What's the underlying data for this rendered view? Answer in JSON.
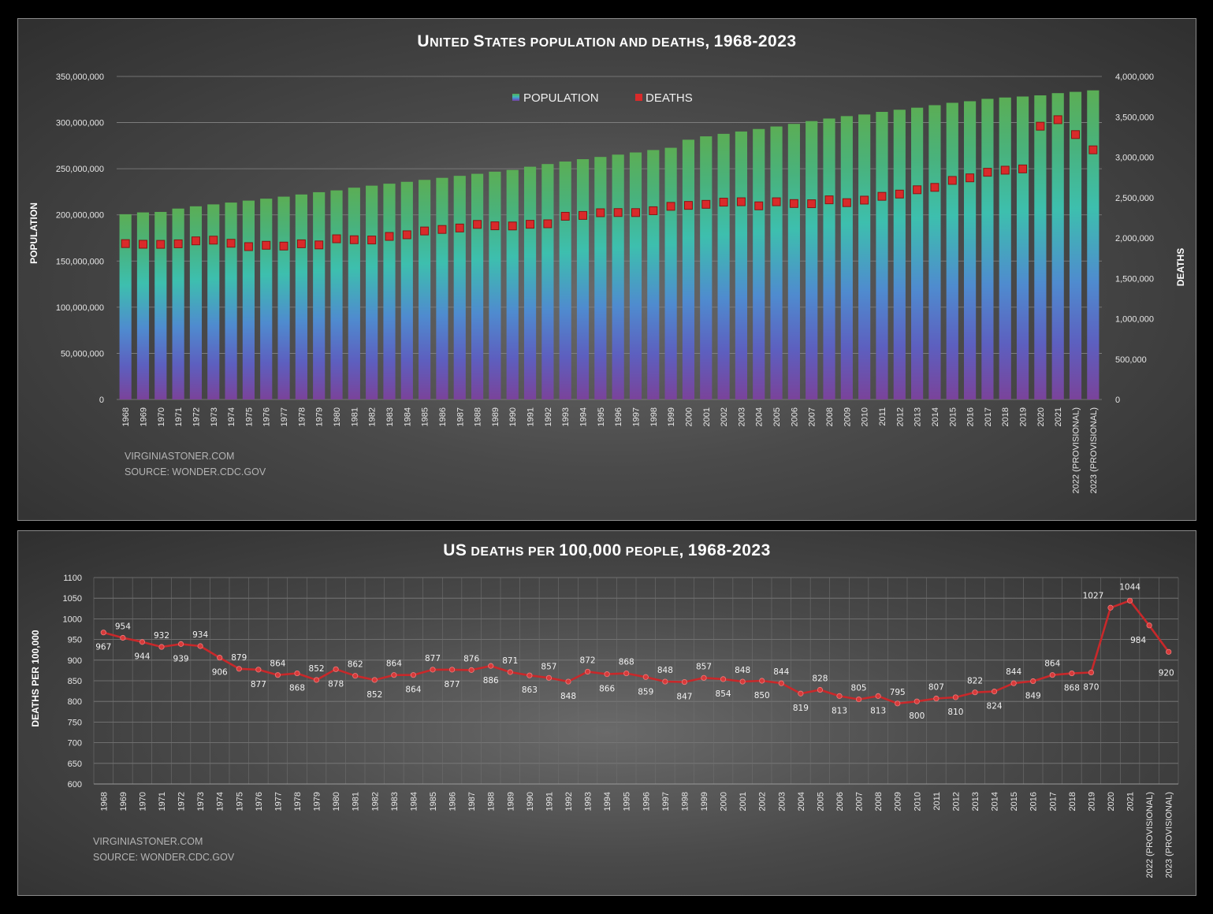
{
  "colors": {
    "background_panel": "#4a4a4a",
    "bar_top": "#58ab56",
    "bar_mid": "#3fbfa8",
    "bar_low": "#5a6fc8",
    "bar_bottom": "#7a479a",
    "deaths_marker": "#d92a2a",
    "line": "#c8282a",
    "grid": "#7e7e7e"
  },
  "chart_data": [
    {
      "type": "bar",
      "title": "United States population and deaths, 1968-2023",
      "ylabel": "POPULATION",
      "y2label": "DEATHS",
      "ylim": [
        0,
        350000000
      ],
      "y2lim": [
        0,
        4000000
      ],
      "yticks": [
        "0",
        "50,000,000",
        "100,000,000",
        "150,000,000",
        "200,000,000",
        "250,000,000",
        "300,000,000",
        "350,000,000"
      ],
      "y2ticks": [
        "0",
        "500,000",
        "1,000,000",
        "1,500,000",
        "2,000,000",
        "2,500,000",
        "3,000,000",
        "3,500,000",
        "4,000,000"
      ],
      "legend": [
        "POPULATION",
        "DEATHS"
      ],
      "legend_position": "top-center",
      "grid": true,
      "credits": [
        "VIRGINIASTONER.COM",
        "SOURCE: WONDER.CDC.GOV"
      ],
      "categories": [
        "1968",
        "1969",
        "1970",
        "1971",
        "1972",
        "1973",
        "1974",
        "1975",
        "1976",
        "1977",
        "1978",
        "1979",
        "1980",
        "1981",
        "1982",
        "1983",
        "1984",
        "1985",
        "1986",
        "1987",
        "1988",
        "1989",
        "1990",
        "1991",
        "1992",
        "1993",
        "1994",
        "1995",
        "1996",
        "1997",
        "1998",
        "1999",
        "2000",
        "2001",
        "2002",
        "2003",
        "2004",
        "2005",
        "2006",
        "2007",
        "2008",
        "2009",
        "2010",
        "2011",
        "2012",
        "2013",
        "2014",
        "2015",
        "2016",
        "2017",
        "2018",
        "2019",
        "2020",
        "2021",
        "2022 (PROVISIONAL)",
        "2023 (PROVISIONAL)"
      ],
      "series": [
        {
          "name": "POPULATION",
          "axis": "left",
          "values": [
            200706052,
            202676946,
            203211926,
            206827028,
            209283904,
            211357490,
            213341590,
            215465246,
            217562728,
            219759860,
            222095080,
            224567234,
            226545805,
            229466000,
            231664000,
            233792000,
            235825000,
            237924000,
            240133000,
            242289000,
            244499000,
            246819000,
            248709873,
            252177000,
            255082000,
            257783000,
            260341000,
            262755000,
            265284000,
            267636000,
            270248000,
            272691000,
            281421906,
            285081556,
            287803914,
            290326418,
            293045739,
            295753151,
            298593212,
            301579895,
            304374846,
            307006550,
            308745538,
            311591917,
            313914040,
            316128839,
            318857056,
            321418820,
            323127513,
            325719178,
            327167434,
            328239523,
            329484123,
            331893745,
            333287557,
            334914895
          ]
        },
        {
          "name": "DEATHS",
          "axis": "right",
          "values": [
            1930082,
            1921990,
            1921031,
            1927542,
            1963944,
            1973003,
            1934388,
            1892879,
            1909440,
            1899597,
            1927788,
            1913841,
            1989841,
            1977981,
            1974797,
            2019201,
            2039369,
            2086440,
            2105361,
            2123323,
            2167999,
            2150466,
            2148463,
            2169518,
            2175613,
            2268553,
            2278994,
            2312132,
            2314690,
            2314245,
            2337256,
            2391399,
            2403351,
            2416425,
            2443387,
            2448288,
            2397615,
            2448017,
            2426264,
            2423712,
            2471984,
            2437163,
            2468435,
            2515458,
            2543279,
            2596993,
            2626418,
            2712630,
            2744248,
            2813503,
            2839205,
            2854838,
            3383729,
            3464231,
            3279857,
            3090964
          ]
        }
      ]
    },
    {
      "type": "line",
      "title": "US deaths per 100,000 people, 1968-2023",
      "ylabel": "DEATHS PER 100,000",
      "ylim": [
        600,
        1100
      ],
      "yticks": [
        "600",
        "650",
        "700",
        "750",
        "800",
        "850",
        "900",
        "950",
        "1000",
        "1050",
        "1100"
      ],
      "grid": true,
      "credits": [
        "VIRGINIASTONER.COM",
        "SOURCE: WONDER.CDC.GOV"
      ],
      "categories": [
        "1968",
        "1969",
        "1970",
        "1971",
        "1972",
        "1973",
        "1974",
        "1975",
        "1976",
        "1977",
        "1978",
        "1979",
        "1980",
        "1981",
        "1982",
        "1983",
        "1984",
        "1985",
        "1986",
        "1987",
        "1988",
        "1989",
        "1990",
        "1991",
        "1992",
        "1993",
        "1994",
        "1995",
        "1996",
        "1997",
        "1998",
        "1999",
        "2000",
        "2001",
        "2002",
        "2003",
        "2004",
        "2005",
        "2006",
        "2007",
        "2008",
        "2009",
        "2010",
        "2011",
        "2012",
        "2013",
        "2014",
        "2015",
        "2016",
        "2017",
        "2018",
        "2019",
        "2020",
        "2021",
        "2022 (PROVISIONAL)",
        "2023 (PROVISIONAL)"
      ],
      "values": [
        967,
        954,
        944,
        932,
        939,
        934,
        906,
        879,
        877,
        864,
        868,
        852,
        878,
        862,
        852,
        864,
        864,
        877,
        877,
        876,
        886,
        871,
        863,
        857,
        848,
        872,
        866,
        868,
        859,
        848,
        847,
        857,
        854,
        848,
        850,
        844,
        819,
        828,
        813,
        805,
        813,
        795,
        800,
        807,
        810,
        822,
        824,
        844,
        849,
        864,
        868,
        870,
        1027,
        1044,
        984,
        920
      ],
      "labels": [
        "967",
        "954",
        "944",
        "932",
        "939",
        "934",
        "906",
        "879",
        "877",
        "864",
        "868",
        "852",
        "878",
        "862",
        "852",
        "864",
        "864",
        "877",
        "877",
        "876",
        "886",
        "871",
        "863",
        "857",
        "848",
        "872",
        "866",
        "868",
        "859",
        "848",
        "847",
        "857",
        "854",
        "848",
        "850",
        "844",
        "819",
        "828",
        "813",
        "805",
        "813",
        "795",
        "800",
        "807",
        "810",
        "822",
        "824",
        "844",
        "849",
        "864",
        "868",
        "870",
        "1027",
        "1044",
        "984",
        "920"
      ]
    }
  ]
}
